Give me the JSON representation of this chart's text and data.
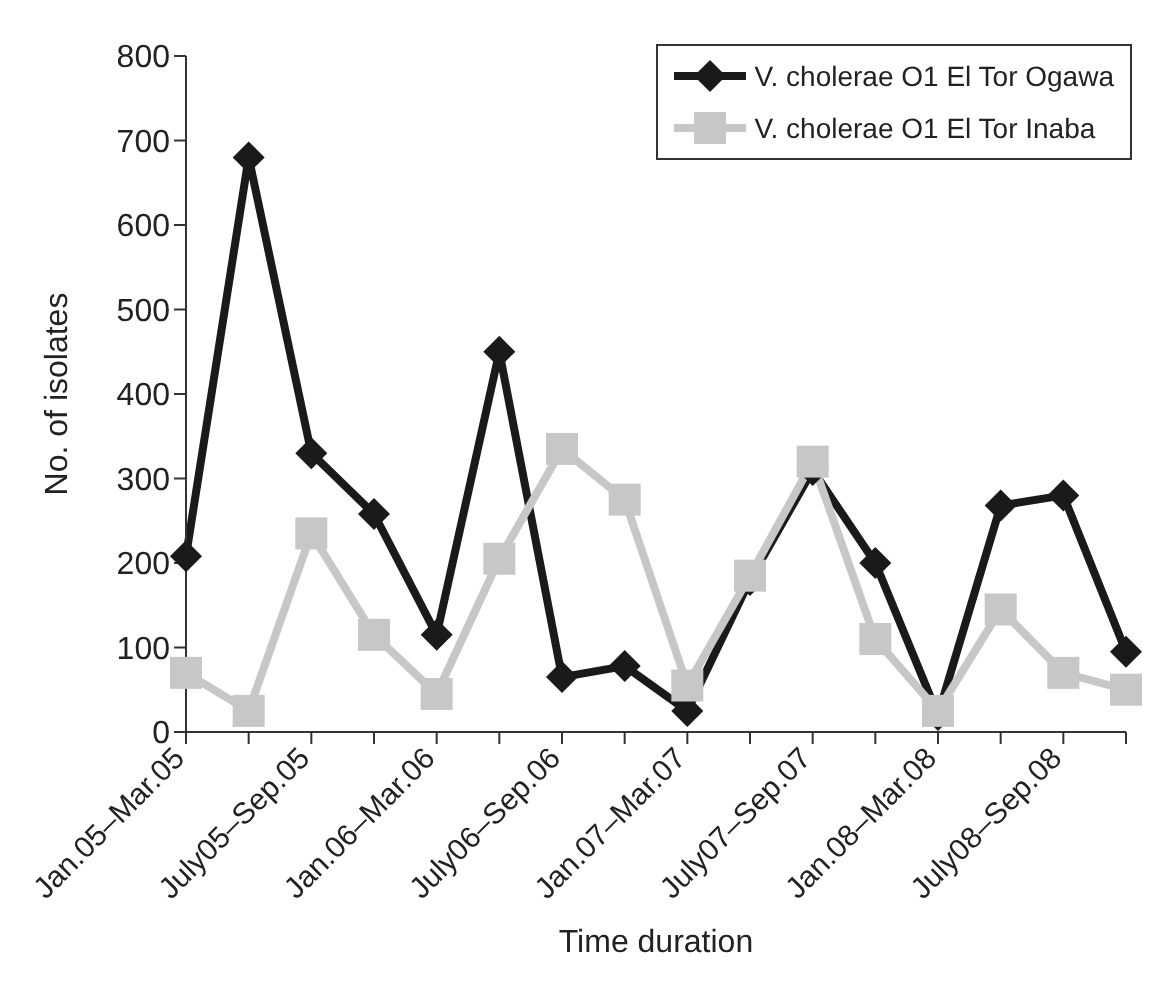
{
  "chart_data": {
    "type": "line",
    "xlabel": "Time duration",
    "ylabel": "No. of isolates",
    "categories": [
      "Jan.05–Mar.05",
      null,
      "July05–Sep.05",
      null,
      "Jan.06–Mar.06",
      null,
      "July06–Sep.06",
      null,
      "Jan.07–Mar.07",
      null,
      "July07–Sep.07",
      null,
      "Jan.08–Mar.08",
      null,
      "July08–Sep.08",
      null
    ],
    "series": [
      {
        "name": "V. cholerae O1 El Tor Ogawa",
        "color": "#1a1a1a",
        "marker": "diamond",
        "values": [
          208,
          680,
          330,
          258,
          115,
          450,
          65,
          78,
          25,
          180,
          310,
          200,
          20,
          268,
          280,
          95
        ]
      },
      {
        "name": "V. cholerae O1 El Tor Inaba",
        "color": "#c6c7c8",
        "marker": "square",
        "values": [
          70,
          25,
          235,
          115,
          45,
          205,
          335,
          275,
          55,
          185,
          320,
          110,
          25,
          145,
          70,
          50
        ]
      }
    ],
    "ylim": [
      0,
      800
    ],
    "yticks": [
      0,
      100,
      200,
      300,
      400,
      500,
      600,
      700,
      800
    ],
    "grid": false,
    "legend": "top right",
    "line_style": "solid"
  }
}
